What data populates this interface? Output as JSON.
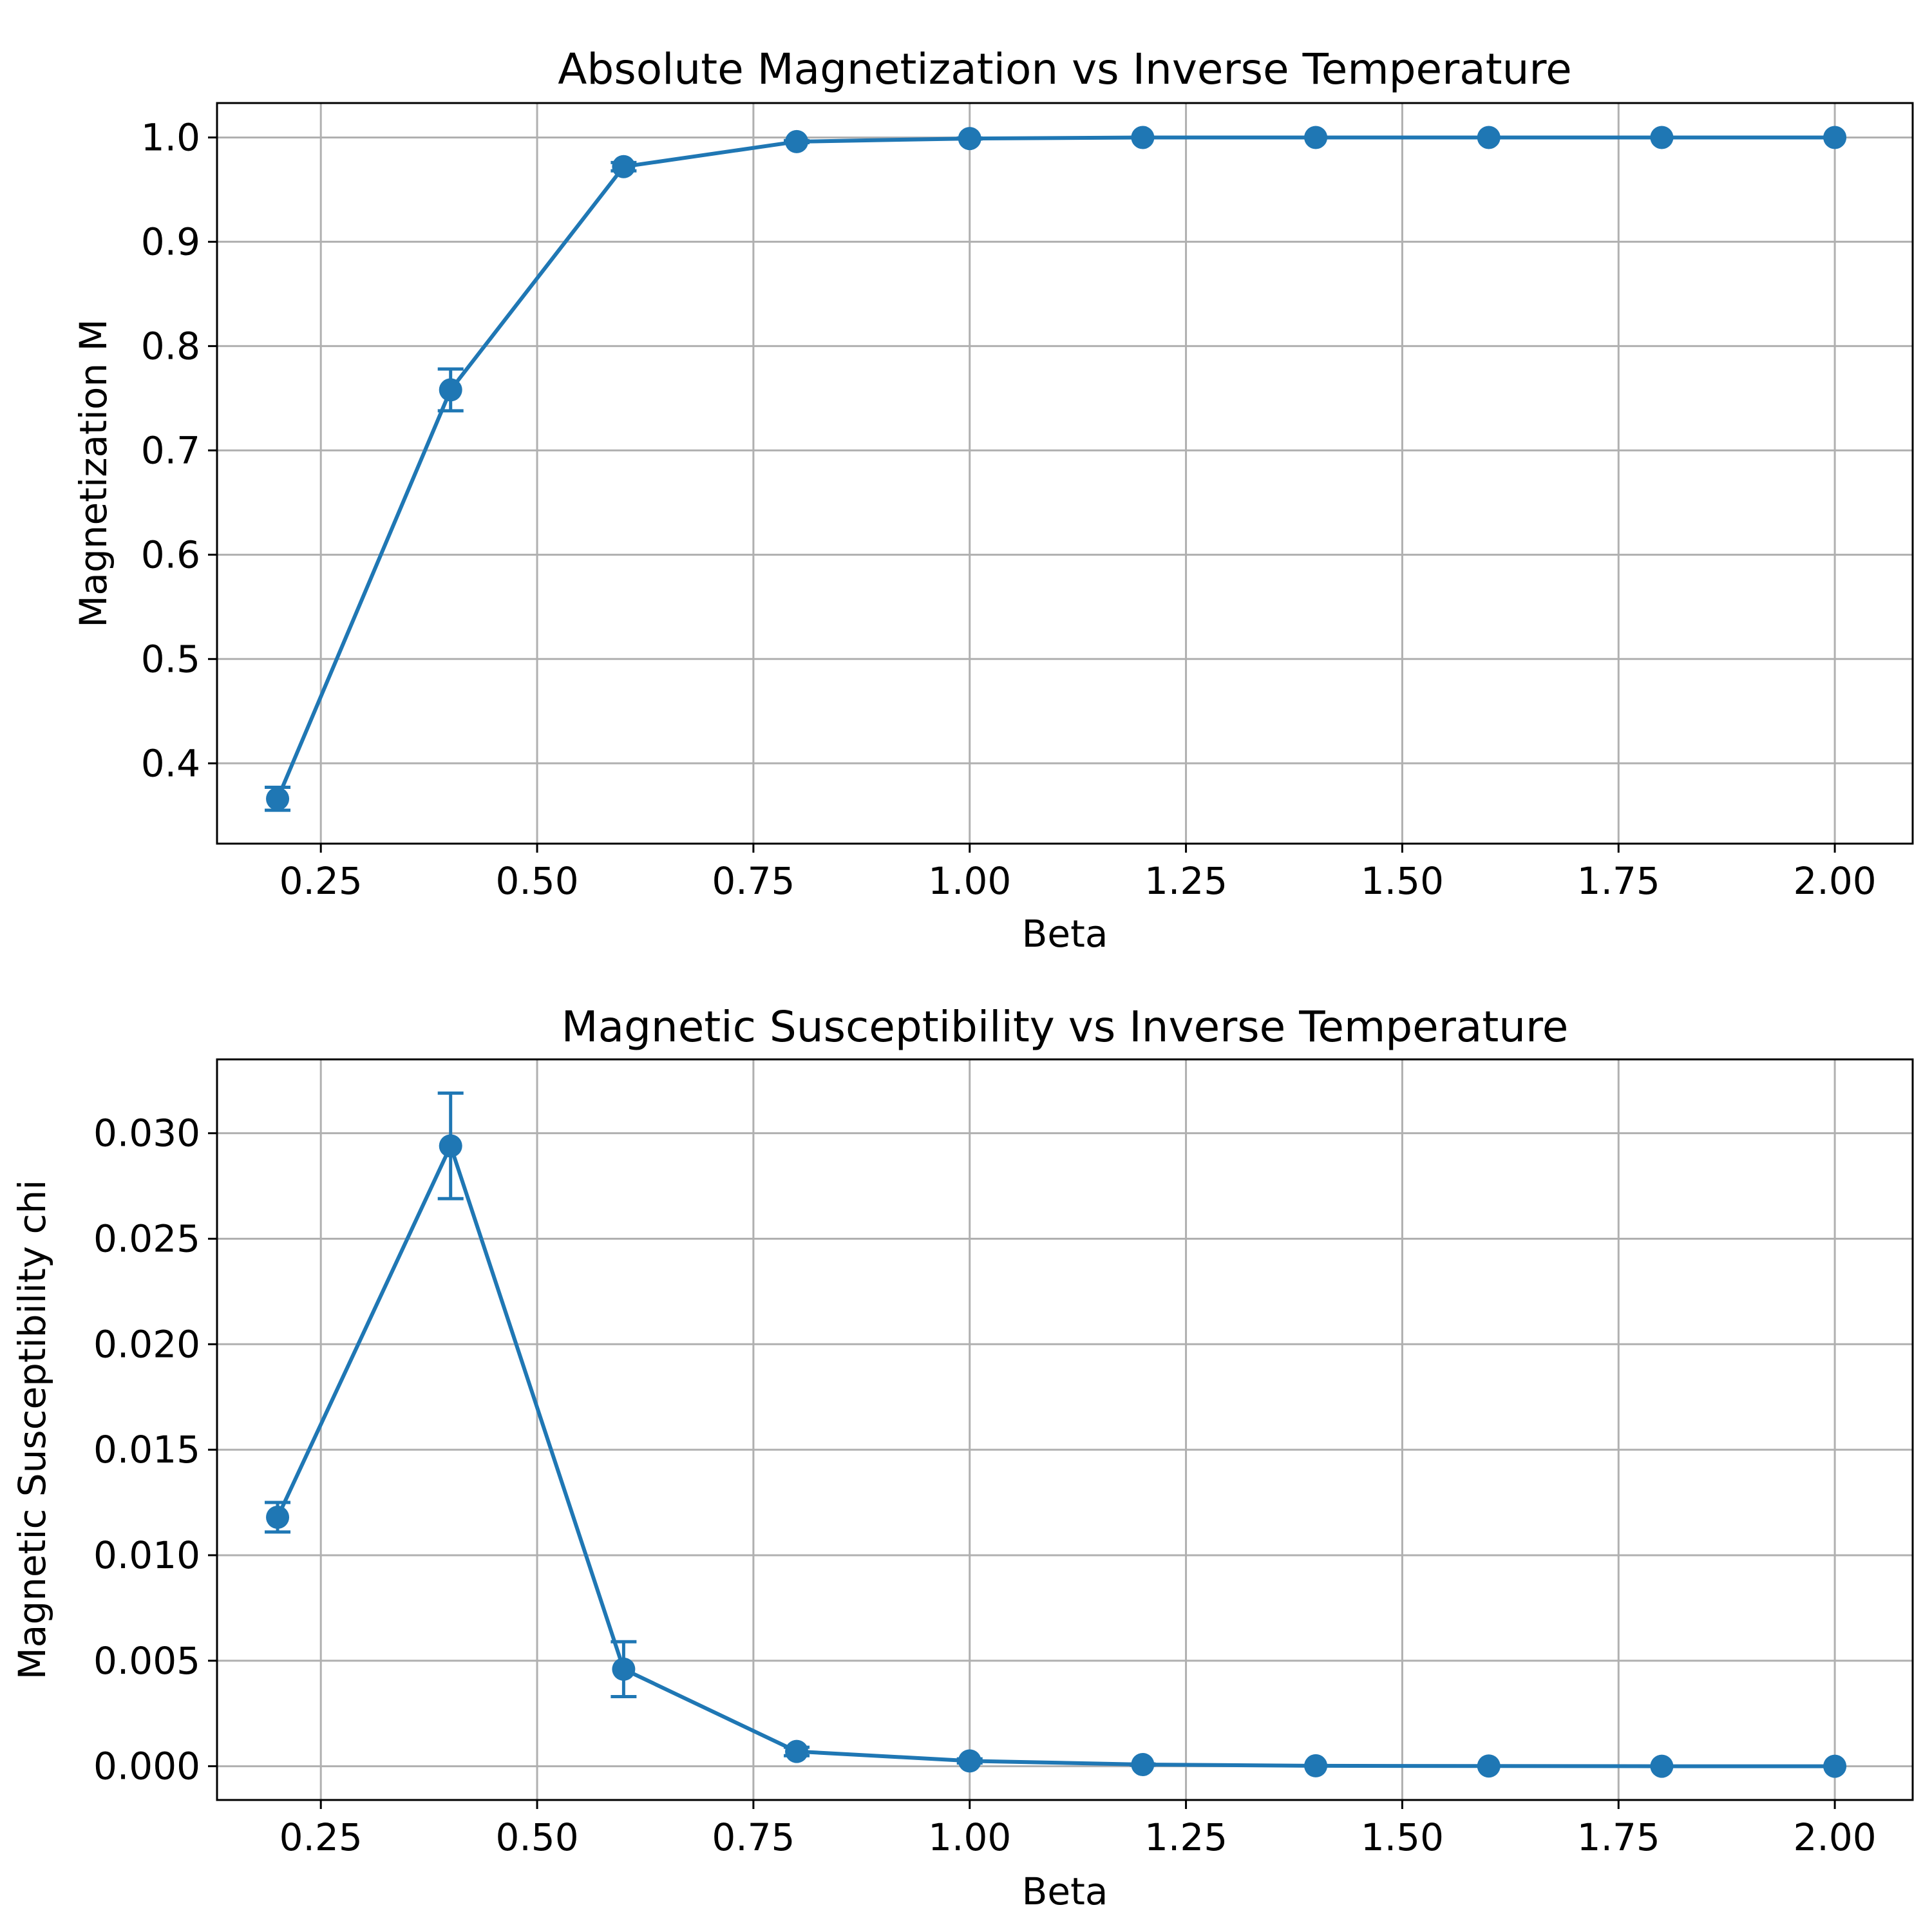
{
  "chart_data": [
    {
      "type": "line",
      "title": "Absolute Magnetization vs Inverse Temperature",
      "xlabel": "Beta",
      "ylabel": "Magnetization M",
      "xlim": [
        0.13,
        2.09
      ],
      "ylim": [
        0.323,
        1.033
      ],
      "xticks": [
        0.25,
        0.5,
        0.75,
        1.0,
        1.25,
        1.5,
        1.75,
        2.0
      ],
      "xtick_labels": [
        "0.25",
        "0.50",
        "0.75",
        "1.00",
        "1.25",
        "1.50",
        "1.75",
        "2.00"
      ],
      "yticks": [
        0.4,
        0.5,
        0.6,
        0.7,
        0.8,
        0.9,
        1.0
      ],
      "ytick_labels": [
        "0.4",
        "0.5",
        "0.6",
        "0.7",
        "0.8",
        "0.9",
        "1.0"
      ],
      "grid": true,
      "color": "#1f77b4",
      "series": [
        {
          "x": [
            0.2,
            0.4,
            0.6,
            0.8,
            1.0,
            1.2,
            1.4,
            1.6,
            1.8,
            2.0
          ],
          "y": [
            0.366,
            0.758,
            0.972,
            0.996,
            0.999,
            1.0,
            1.0,
            1.0,
            1.0,
            1.0
          ],
          "yerr": [
            0.011,
            0.02,
            0.004,
            0.001,
            0.0005,
            0.0002,
            0.0,
            0.0,
            0.0,
            0.0
          ]
        }
      ]
    },
    {
      "type": "line",
      "title": "Magnetic Susceptibility vs Inverse Temperature",
      "xlabel": "Beta",
      "ylabel": "Magnetic Susceptibility chi",
      "xlim": [
        0.13,
        2.09
      ],
      "ylim": [
        -0.0016,
        0.0335
      ],
      "xticks": [
        0.25,
        0.5,
        0.75,
        1.0,
        1.25,
        1.5,
        1.75,
        2.0
      ],
      "xtick_labels": [
        "0.25",
        "0.50",
        "0.75",
        "1.00",
        "1.25",
        "1.50",
        "1.75",
        "2.00"
      ],
      "yticks": [
        0.0,
        0.005,
        0.01,
        0.015,
        0.02,
        0.025,
        0.03
      ],
      "ytick_labels": [
        "0.000",
        "0.005",
        "0.010",
        "0.015",
        "0.020",
        "0.025",
        "0.030"
      ],
      "grid": true,
      "color": "#1f77b4",
      "series": [
        {
          "x": [
            0.2,
            0.4,
            0.6,
            0.8,
            1.0,
            1.2,
            1.4,
            1.6,
            1.8,
            2.0
          ],
          "y": [
            0.0118,
            0.0294,
            0.0046,
            0.0007,
            0.00025,
            8e-05,
            2e-05,
            1e-05,
            0.0,
            0.0
          ],
          "yerr": [
            0.0007,
            0.0025,
            0.0013,
            0.0002,
            0.0001,
            3e-05,
            0.0,
            0.0,
            0.0,
            0.0
          ]
        }
      ]
    }
  ]
}
